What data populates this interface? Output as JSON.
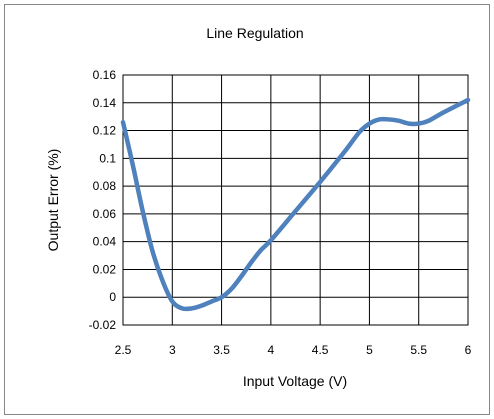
{
  "chart_data": {
    "type": "line",
    "title": "Line Regulation",
    "xlabel": "Input Voltage (V)",
    "ylabel": "Output Error (%)",
    "xlim": [
      2.5,
      6
    ],
    "ylim": [
      -0.02,
      0.16
    ],
    "x_ticks": [
      "2.5",
      "3",
      "3.5",
      "4",
      "4.5",
      "5",
      "5.5",
      "6"
    ],
    "y_ticks": [
      "-0.02",
      "0",
      "0.02",
      "0.04",
      "0.06",
      "0.08",
      "0.1",
      "0.12",
      "0.14",
      "0.16"
    ],
    "grid": true,
    "legend": "none",
    "series": [
      {
        "color": "#4f81bd",
        "x": [
          2.5,
          2.6,
          2.7,
          2.8,
          2.9,
          3.0,
          3.1,
          3.2,
          3.3,
          3.4,
          3.5,
          3.6,
          3.7,
          3.8,
          3.9,
          4.0,
          4.25,
          4.5,
          4.75,
          4.9,
          5.0,
          5.1,
          5.2,
          5.3,
          5.4,
          5.5,
          5.6,
          5.75,
          6.0
        ],
        "y": [
          0.126,
          0.095,
          0.062,
          0.033,
          0.012,
          -0.003,
          -0.008,
          -0.008,
          -0.006,
          -0.003,
          0.0,
          0.006,
          0.015,
          0.025,
          0.034,
          0.041,
          0.062,
          0.083,
          0.105,
          0.119,
          0.125,
          0.128,
          0.128,
          0.127,
          0.125,
          0.125,
          0.127,
          0.133,
          0.142
        ]
      }
    ]
  }
}
